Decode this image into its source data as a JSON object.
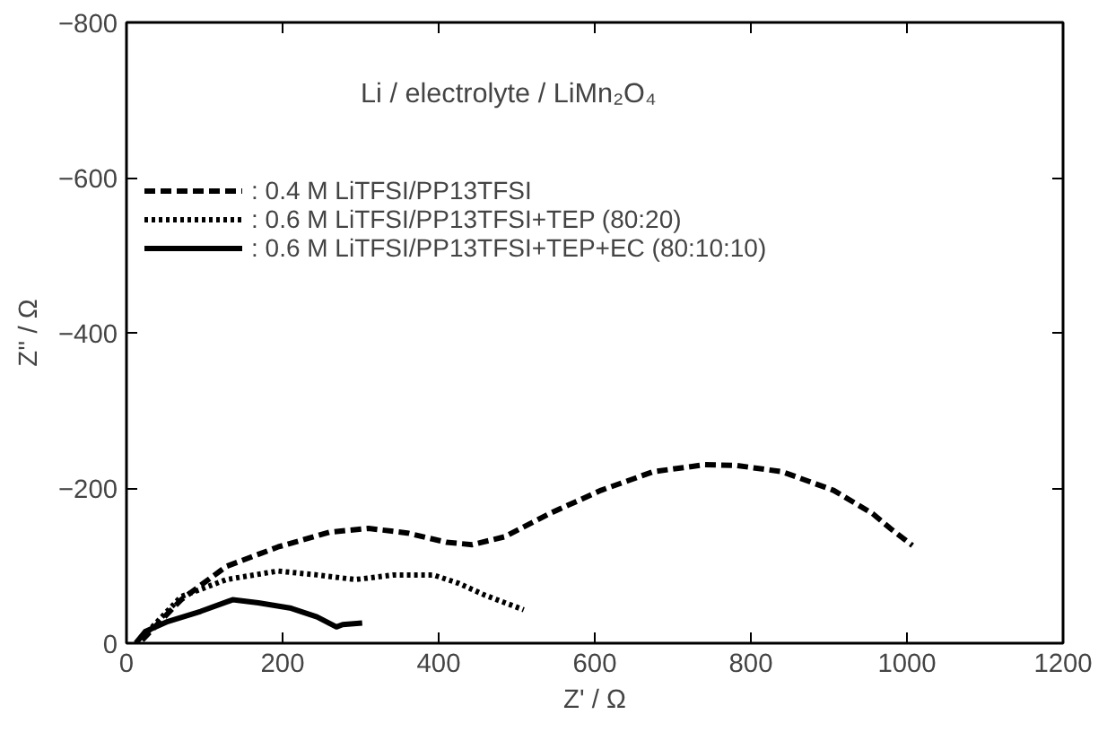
{
  "chart_data": {
    "type": "line",
    "xlabel": "Z' / Ω",
    "ylabel": "Z'' / Ω",
    "annotations": [
      "Li / electrolyte / LiMn₂O₄"
    ],
    "xlim": [
      0,
      1200
    ],
    "xticks": [
      0,
      200,
      400,
      600,
      800,
      1000,
      1200
    ],
    "ylim": [
      0,
      -800
    ],
    "yticks": [
      0,
      -200,
      -400,
      -600,
      -800
    ],
    "grid": false,
    "legend": "top left",
    "marker": "none",
    "series": [
      {
        "name": ": 0.4 M LiTFSI/PP13TFSI",
        "color": "#000000",
        "line_style": "dashed",
        "x": [
          20,
          70,
          128,
          194,
          260,
          310,
          360,
          410,
          443,
          484,
          542,
          608,
          675,
          741,
          782,
          840,
          906,
          956,
          981,
          1007
        ],
        "values": [
          -4,
          -56,
          -99,
          -124,
          -143,
          -148,
          -142,
          -130,
          -127,
          -137,
          -167,
          -197,
          -221,
          -230,
          -229,
          -221,
          -197,
          -167,
          -146,
          -126
        ]
      },
      {
        "name": ": 0.6 M LiTFSI/PP13TFSI+TEP (80:20)",
        "color": "#000000",
        "line_style": "dotted",
        "x": [
          20,
          70,
          128,
          194,
          244,
          293,
          343,
          393,
          426,
          459,
          509
        ],
        "values": [
          -7,
          -60,
          -82,
          -93,
          -88,
          -82,
          -88,
          -88,
          -77,
          -62,
          -43
        ]
      },
      {
        "name": ": 0.6 M LiTFSI/PP13TFSI+TEP+EC (80:10:10)",
        "color": "#000000",
        "line_style": "solid",
        "x": [
          12,
          24,
          53,
          95,
          136,
          169,
          211,
          244,
          269,
          277,
          302
        ],
        "values": [
          0,
          -15,
          -28,
          -41,
          -56,
          -52,
          -45,
          -34,
          -21,
          -24,
          -26
        ]
      }
    ]
  }
}
